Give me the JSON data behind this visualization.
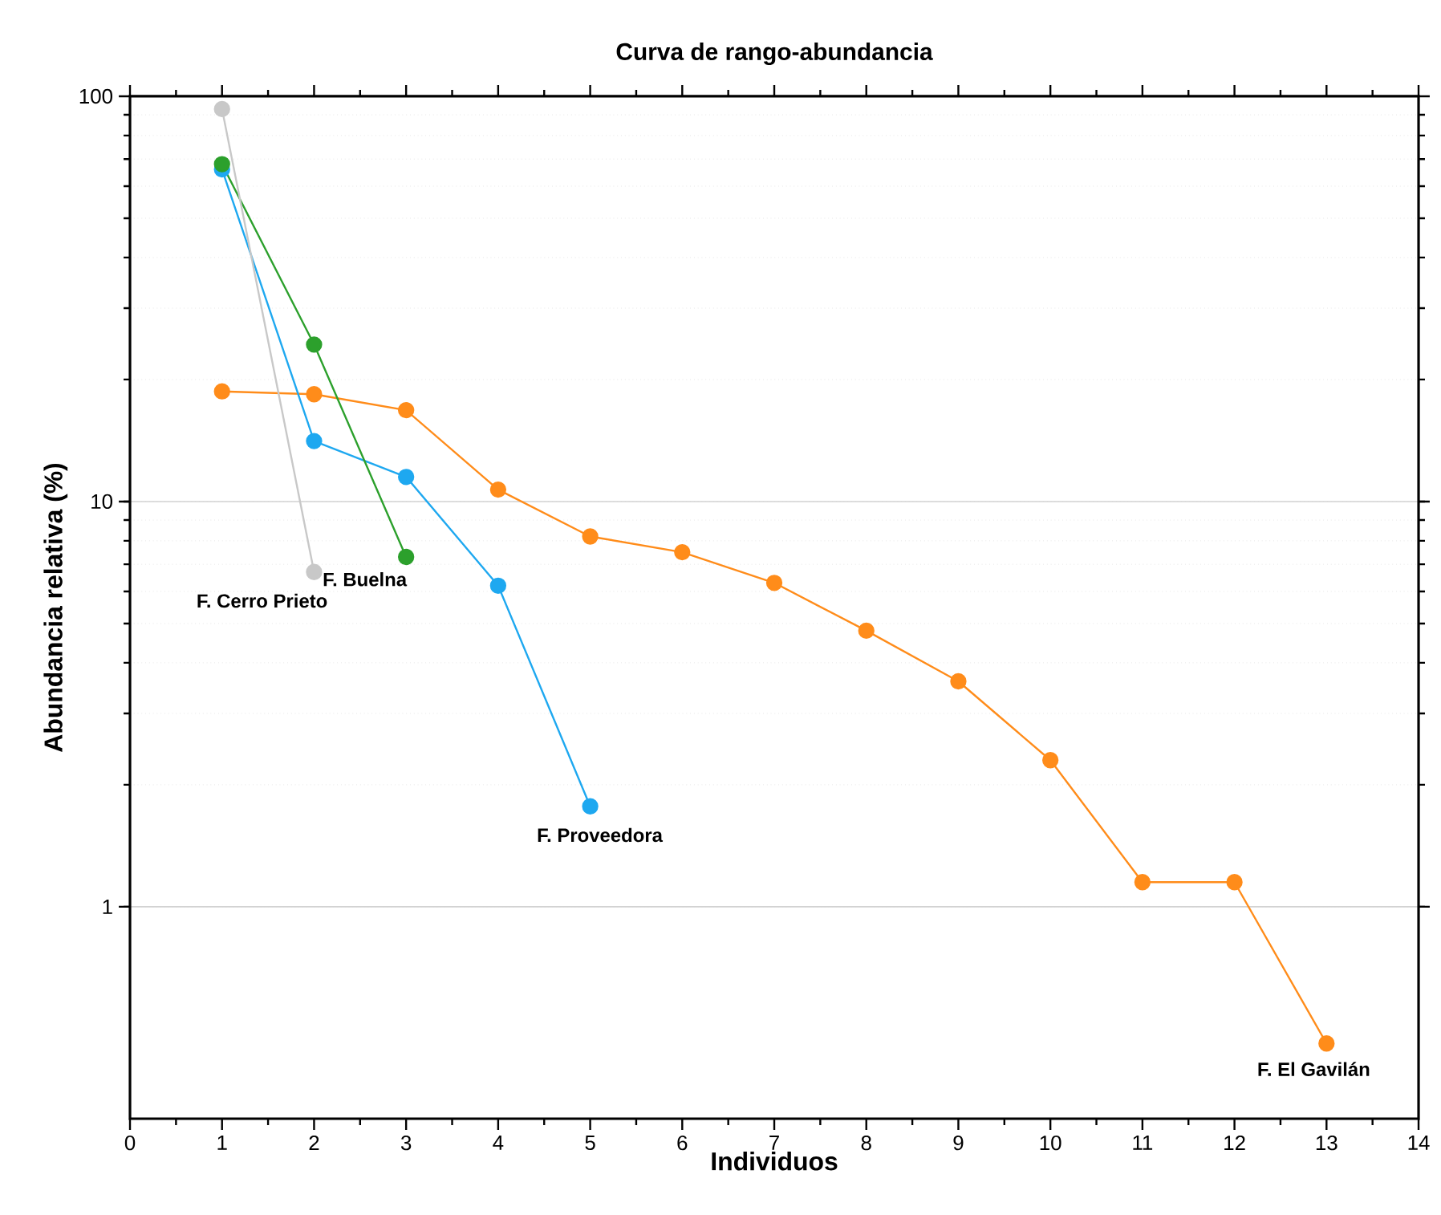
{
  "chart_data": {
    "type": "line",
    "title": "Curva de rango-abundancia",
    "xlabel": "Individuos",
    "ylabel": "Abundancia relativa (%)",
    "log": "y",
    "xlim": [
      0,
      14
    ],
    "xticks": [
      0,
      1,
      2,
      3,
      4,
      5,
      6,
      7,
      8,
      9,
      10,
      11,
      12,
      13,
      14
    ],
    "ylim": [
      0.3,
      100
    ],
    "yticks": [
      1,
      10,
      100
    ],
    "grid": "y",
    "marker": "circle",
    "line_style": "solid",
    "series": [
      {
        "name": "F. Cerro Prieto",
        "color": "#c8c8c8",
        "x": [
          1,
          2
        ],
        "values": [
          93,
          6.7
        ]
      },
      {
        "name": "F. Buelna",
        "color": "#2ca02c",
        "x": [
          1,
          2,
          3
        ],
        "values": [
          68,
          24.4,
          7.3
        ]
      },
      {
        "name": "F. Proveedora",
        "color": "#1ea8f0",
        "x": [
          1,
          2,
          3,
          4,
          5
        ],
        "values": [
          66,
          14.1,
          11.5,
          6.2,
          1.77
        ]
      },
      {
        "name": "F. El Gavilán",
        "color": "#ff8c1a",
        "x": [
          1,
          2,
          3,
          4,
          5,
          6,
          7,
          8,
          9,
          10,
          11,
          12,
          13
        ],
        "values": [
          18.7,
          18.4,
          16.8,
          10.7,
          8.2,
          7.5,
          6.3,
          4.8,
          3.6,
          2.3,
          1.15,
          1.15,
          0.46
        ]
      }
    ]
  }
}
